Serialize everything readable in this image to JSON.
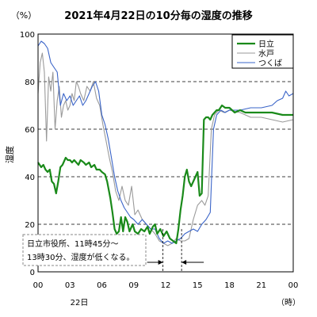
{
  "chart_data": {
    "type": "line",
    "title": "2021年4月22日の10分毎の湿度の推移",
    "y_unit_label": "（%）",
    "ylabel": "湿度",
    "ylim": [
      0,
      100
    ],
    "yticks": [
      "0",
      "20",
      "40",
      "60",
      "80",
      "100"
    ],
    "xlim": [
      0,
      24
    ],
    "xticks": [
      "00",
      "03",
      "06",
      "09",
      "12",
      "15",
      "18",
      "21",
      "00"
    ],
    "x_date_label": "22日",
    "x_unit_label": "（時）",
    "grid": {
      "dashed_y": [
        20,
        40,
        60,
        80
      ]
    },
    "legend_position": "top-right",
    "annotation": {
      "line1": "日立市役所、11時45分～",
      "line2": "13時30分、湿度が低くなる。",
      "x_from": 11.75,
      "x_to": 13.5
    },
    "series": [
      {
        "name": "日立",
        "color": "#1a8a1a",
        "width": 2.2,
        "points": [
          [
            0,
            46
          ],
          [
            0.3,
            44
          ],
          [
            0.5,
            45
          ],
          [
            0.7,
            43
          ],
          [
            0.9,
            42
          ],
          [
            1.1,
            43
          ],
          [
            1.3,
            38
          ],
          [
            1.5,
            37
          ],
          [
            1.7,
            33
          ],
          [
            1.9,
            38
          ],
          [
            2.1,
            44
          ],
          [
            2.3,
            45
          ],
          [
            2.6,
            48
          ],
          [
            2.8,
            47
          ],
          [
            3.0,
            47
          ],
          [
            3.2,
            46
          ],
          [
            3.4,
            47
          ],
          [
            3.6,
            46
          ],
          [
            3.8,
            45
          ],
          [
            4.0,
            47
          ],
          [
            4.3,
            46
          ],
          [
            4.5,
            45
          ],
          [
            4.8,
            46
          ],
          [
            5.0,
            44
          ],
          [
            5.3,
            45
          ],
          [
            5.5,
            43
          ],
          [
            5.8,
            43
          ],
          [
            6.0,
            42
          ],
          [
            6.3,
            41
          ],
          [
            6.5,
            38
          ],
          [
            6.8,
            31
          ],
          [
            7.0,
            25
          ],
          [
            7.2,
            18
          ],
          [
            7.4,
            16
          ],
          [
            7.6,
            17
          ],
          [
            7.8,
            23
          ],
          [
            8.0,
            17
          ],
          [
            8.2,
            23
          ],
          [
            8.4,
            21
          ],
          [
            8.6,
            17
          ],
          [
            8.9,
            20
          ],
          [
            9.1,
            17
          ],
          [
            9.4,
            16
          ],
          [
            9.7,
            18
          ],
          [
            10.0,
            17
          ],
          [
            10.3,
            19
          ],
          [
            10.5,
            16
          ],
          [
            10.8,
            19
          ],
          [
            11.0,
            20
          ],
          [
            11.2,
            16
          ],
          [
            11.5,
            18
          ],
          [
            11.8,
            15
          ],
          [
            12.1,
            17
          ],
          [
            12.4,
            14
          ],
          [
            12.7,
            13
          ],
          [
            13.0,
            12
          ],
          [
            13.2,
            18
          ],
          [
            13.4,
            26
          ],
          [
            13.6,
            32
          ],
          [
            13.8,
            40
          ],
          [
            14.0,
            43
          ],
          [
            14.2,
            38
          ],
          [
            14.4,
            36
          ],
          [
            14.6,
            38
          ],
          [
            14.8,
            40
          ],
          [
            15.0,
            42
          ],
          [
            15.2,
            32
          ],
          [
            15.4,
            33
          ],
          [
            15.6,
            64
          ],
          [
            15.8,
            65
          ],
          [
            16.0,
            65
          ],
          [
            16.2,
            64
          ],
          [
            16.4,
            66
          ],
          [
            16.6,
            67
          ],
          [
            16.8,
            68
          ],
          [
            17.0,
            68
          ],
          [
            17.3,
            70
          ],
          [
            17.6,
            69
          ],
          [
            18.0,
            69
          ],
          [
            18.5,
            67
          ],
          [
            19.0,
            68
          ],
          [
            19.5,
            67
          ],
          [
            20.0,
            67
          ],
          [
            21.0,
            67
          ],
          [
            22.0,
            67
          ],
          [
            23.0,
            66
          ],
          [
            24.0,
            66
          ]
        ]
      },
      {
        "name": "水戸",
        "color": "#9a9a9a",
        "width": 1.1,
        "points": [
          [
            0,
            75
          ],
          [
            0.2,
            88
          ],
          [
            0.4,
            92
          ],
          [
            0.6,
            84
          ],
          [
            0.8,
            55
          ],
          [
            1.0,
            82
          ],
          [
            1.2,
            76
          ],
          [
            1.4,
            84
          ],
          [
            1.6,
            60
          ],
          [
            1.8,
            72
          ],
          [
            2.0,
            78
          ],
          [
            2.2,
            65
          ],
          [
            2.4,
            70
          ],
          [
            2.6,
            72
          ],
          [
            2.8,
            68
          ],
          [
            3.0,
            70
          ],
          [
            3.2,
            75
          ],
          [
            3.4,
            72
          ],
          [
            3.6,
            80
          ],
          [
            3.8,
            78
          ],
          [
            4.0,
            75
          ],
          [
            4.3,
            72
          ],
          [
            4.6,
            78
          ],
          [
            4.9,
            76
          ],
          [
            5.2,
            80
          ],
          [
            5.5,
            73
          ],
          [
            5.8,
            70
          ],
          [
            6.1,
            62
          ],
          [
            6.4,
            55
          ],
          [
            6.7,
            48
          ],
          [
            7.0,
            42
          ],
          [
            7.3,
            34
          ],
          [
            7.6,
            30
          ],
          [
            7.9,
            36
          ],
          [
            8.2,
            30
          ],
          [
            8.5,
            28
          ],
          [
            8.8,
            36
          ],
          [
            9.1,
            24
          ],
          [
            9.4,
            26
          ],
          [
            9.8,
            22
          ],
          [
            10.2,
            20
          ],
          [
            10.6,
            18
          ],
          [
            11.0,
            16
          ],
          [
            11.4,
            13
          ],
          [
            11.8,
            12
          ],
          [
            12.2,
            11
          ],
          [
            12.6,
            12
          ],
          [
            13.0,
            14
          ],
          [
            13.4,
            13
          ],
          [
            13.8,
            13
          ],
          [
            14.2,
            14
          ],
          [
            14.6,
            22
          ],
          [
            15.0,
            28
          ],
          [
            15.4,
            30
          ],
          [
            15.7,
            28
          ],
          [
            16.0,
            32
          ],
          [
            16.3,
            60
          ],
          [
            16.6,
            66
          ],
          [
            17.0,
            68
          ],
          [
            17.5,
            67
          ],
          [
            18.0,
            68
          ],
          [
            19.0,
            67
          ],
          [
            20.0,
            65
          ],
          [
            21.0,
            65
          ],
          [
            22.0,
            64
          ],
          [
            23.0,
            63
          ],
          [
            24.0,
            64
          ]
        ]
      },
      {
        "name": "つくば",
        "color": "#3a64c8",
        "width": 1.1,
        "points": [
          [
            0,
            95
          ],
          [
            0.3,
            97
          ],
          [
            0.6,
            96
          ],
          [
            0.9,
            94
          ],
          [
            1.2,
            88
          ],
          [
            1.5,
            86
          ],
          [
            1.8,
            84
          ],
          [
            2.1,
            70
          ],
          [
            2.4,
            75
          ],
          [
            2.7,
            72
          ],
          [
            3.0,
            74
          ],
          [
            3.3,
            70
          ],
          [
            3.6,
            72
          ],
          [
            3.9,
            74
          ],
          [
            4.2,
            70
          ],
          [
            4.5,
            72
          ],
          [
            4.8,
            75
          ],
          [
            5.1,
            78
          ],
          [
            5.4,
            80
          ],
          [
            5.7,
            76
          ],
          [
            6.0,
            66
          ],
          [
            6.3,
            62
          ],
          [
            6.6,
            56
          ],
          [
            6.9,
            48
          ],
          [
            7.2,
            40
          ],
          [
            7.5,
            34
          ],
          [
            7.8,
            30
          ],
          [
            8.1,
            27
          ],
          [
            8.4,
            25
          ],
          [
            8.7,
            23
          ],
          [
            9.0,
            22
          ],
          [
            9.4,
            20
          ],
          [
            9.8,
            22
          ],
          [
            10.2,
            20
          ],
          [
            10.6,
            18
          ],
          [
            11.0,
            18
          ],
          [
            11.4,
            14
          ],
          [
            11.8,
            12
          ],
          [
            12.2,
            13
          ],
          [
            12.6,
            12
          ],
          [
            13.0,
            13
          ],
          [
            13.4,
            14
          ],
          [
            13.8,
            16
          ],
          [
            14.2,
            17
          ],
          [
            14.6,
            18
          ],
          [
            15.0,
            17
          ],
          [
            15.4,
            20
          ],
          [
            15.8,
            22
          ],
          [
            16.2,
            25
          ],
          [
            16.5,
            60
          ],
          [
            16.8,
            66
          ],
          [
            17.2,
            68
          ],
          [
            17.6,
            67
          ],
          [
            18.0,
            68
          ],
          [
            19.0,
            68
          ],
          [
            20.0,
            69
          ],
          [
            21.0,
            69
          ],
          [
            22.0,
            70
          ],
          [
            22.5,
            72
          ],
          [
            23.0,
            73
          ],
          [
            23.3,
            76
          ],
          [
            23.6,
            74
          ],
          [
            24.0,
            75
          ]
        ]
      }
    ]
  }
}
